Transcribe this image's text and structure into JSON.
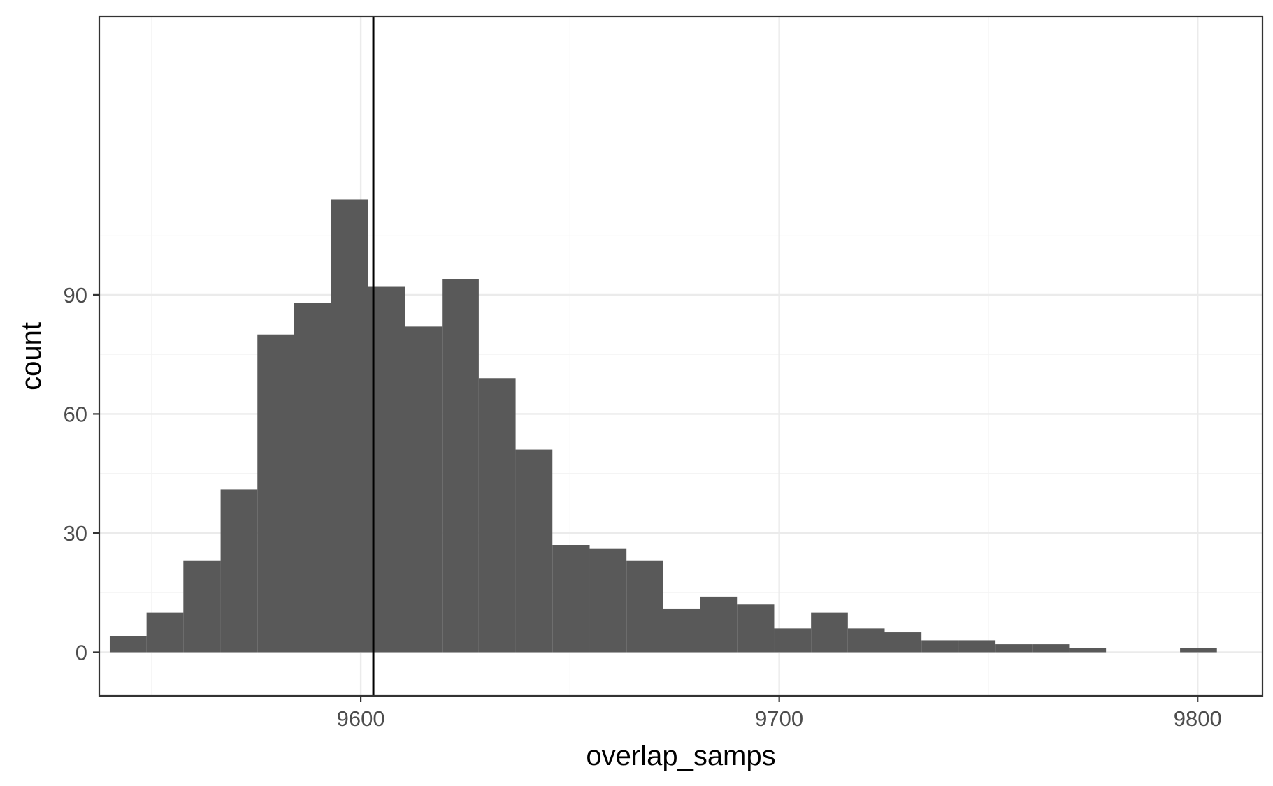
{
  "chart_data": {
    "type": "bar",
    "subtype": "histogram",
    "title": "",
    "xlabel": "overlap_samps",
    "ylabel": "count",
    "xlim": [
      9537.5,
      9815.5
    ],
    "ylim": [
      -11,
      160
    ],
    "x_ticks": [
      9600,
      9700,
      9800
    ],
    "y_ticks": [
      0,
      30,
      60,
      90
    ],
    "x_minor_ticks": [
      9550,
      9650,
      9750
    ],
    "y_minor_ticks": [
      15,
      45,
      75,
      105
    ],
    "grid": true,
    "legend": "none",
    "bin_width": 8.82,
    "bins": [
      {
        "x0": 9540.0,
        "x1": 9548.8,
        "count": 4
      },
      {
        "x0": 9548.8,
        "x1": 9557.6,
        "count": 10
      },
      {
        "x0": 9557.6,
        "x1": 9566.5,
        "count": 23
      },
      {
        "x0": 9566.5,
        "x1": 9575.3,
        "count": 41
      },
      {
        "x0": 9575.3,
        "x1": 9584.1,
        "count": 80
      },
      {
        "x0": 9584.1,
        "x1": 9592.9,
        "count": 88
      },
      {
        "x0": 9592.9,
        "x1": 9601.7,
        "count": 114
      },
      {
        "x0": 9601.7,
        "x1": 9610.6,
        "count": 92
      },
      {
        "x0": 9610.6,
        "x1": 9619.4,
        "count": 82
      },
      {
        "x0": 9619.4,
        "x1": 9628.2,
        "count": 94
      },
      {
        "x0": 9628.2,
        "x1": 9637.0,
        "count": 69
      },
      {
        "x0": 9637.0,
        "x1": 9645.8,
        "count": 51
      },
      {
        "x0": 9645.8,
        "x1": 9654.7,
        "count": 27
      },
      {
        "x0": 9654.7,
        "x1": 9663.5,
        "count": 26
      },
      {
        "x0": 9663.5,
        "x1": 9672.3,
        "count": 23
      },
      {
        "x0": 9672.3,
        "x1": 9681.1,
        "count": 11
      },
      {
        "x0": 9681.1,
        "x1": 9689.9,
        "count": 14
      },
      {
        "x0": 9689.9,
        "x1": 9698.8,
        "count": 12
      },
      {
        "x0": 9698.8,
        "x1": 9707.6,
        "count": 6
      },
      {
        "x0": 9707.6,
        "x1": 9716.4,
        "count": 10
      },
      {
        "x0": 9716.4,
        "x1": 9725.2,
        "count": 6
      },
      {
        "x0": 9725.2,
        "x1": 9734.0,
        "count": 5
      },
      {
        "x0": 9734.0,
        "x1": 9742.9,
        "count": 3
      },
      {
        "x0": 9742.9,
        "x1": 9751.7,
        "count": 3
      },
      {
        "x0": 9751.7,
        "x1": 9760.5,
        "count": 2
      },
      {
        "x0": 9760.5,
        "x1": 9769.3,
        "count": 2
      },
      {
        "x0": 9769.3,
        "x1": 9778.1,
        "count": 1
      },
      {
        "x0": 9778.1,
        "x1": 9787.0,
        "count": 0
      },
      {
        "x0": 9787.0,
        "x1": 9795.8,
        "count": 0
      },
      {
        "x0": 9795.8,
        "x1": 9804.6,
        "count": 1
      }
    ],
    "reference_line": {
      "x": 9603
    },
    "colors": {
      "bar_fill": "#595959",
      "reference_line": "#000000",
      "grid_major": "#ebebeb",
      "grid_minor": "#f4f4f4",
      "panel_border": "#333333",
      "tick_label": "#4d4d4d",
      "axis_title": "#000000"
    }
  }
}
